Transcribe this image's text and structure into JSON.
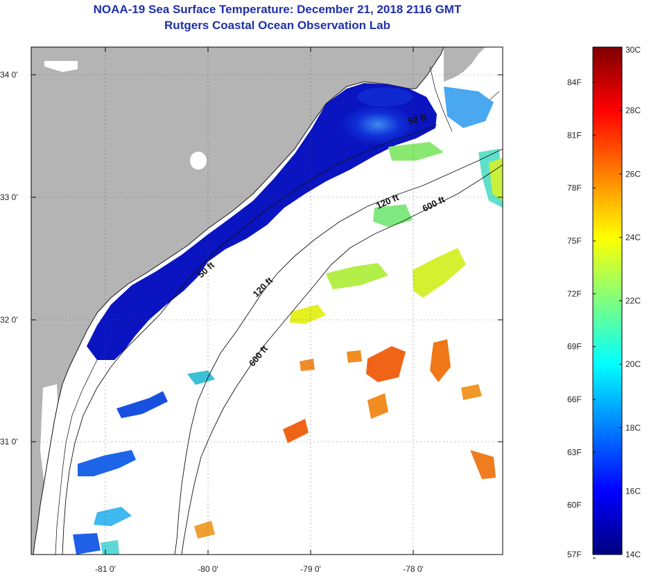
{
  "header": {
    "title": "NOAA-19 Sea Surface Temperature:  December 21, 2018 2116 GMT",
    "subtitle": "Rutgers Coastal Ocean Observation Lab"
  },
  "map": {
    "lat_labels": [
      "34 0'",
      "33 0'",
      "32 0'",
      "31 0'"
    ],
    "lon_labels": [
      "-81 0'",
      "-80 0'",
      "-79 0'",
      "-78 0'"
    ],
    "contour_labels": [
      {
        "text": "50 ft",
        "where": "Cape Fear nearshore"
      },
      {
        "text": "120 ft",
        "where": "outer shelf north"
      },
      {
        "text": "600 ft",
        "where": "shelf break north"
      },
      {
        "text": "50 ft",
        "where": "Charleston nearshore"
      },
      {
        "text": "120 ft",
        "where": "outer shelf central"
      },
      {
        "text": "600 ft",
        "where": "shelf break central"
      }
    ],
    "colors": {
      "land": "#b4b4b4",
      "ocean_no_data": "#ffffff",
      "cold_water": "#0a14c8",
      "warm_water": "#f06418"
    }
  },
  "colorbar": {
    "fahrenheit_labels": [
      "84F",
      "81F",
      "78F",
      "75F",
      "72F",
      "69F",
      "66F",
      "63F",
      "60F",
      "57F"
    ],
    "celsius_labels": [
      "30C",
      "28C",
      "26C",
      "24C",
      "22C",
      "20C",
      "18C",
      "16C",
      "14C"
    ],
    "min_c": 14,
    "max_c": 30,
    "colormap": [
      "#00007f",
      "#0000ff",
      "#007fff",
      "#00ffff",
      "#7fff7f",
      "#ffff00",
      "#ff7f00",
      "#ff0000",
      "#7f0000"
    ]
  }
}
